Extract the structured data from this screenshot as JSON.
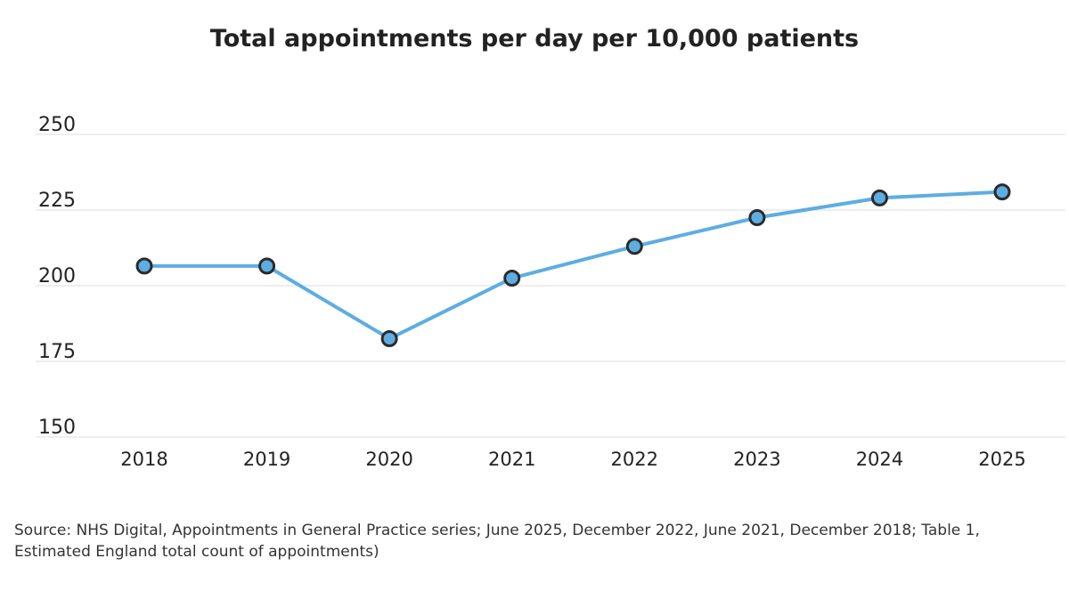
{
  "chart_data": {
    "type": "line",
    "title": "Total appointments per day per 10,000 patients",
    "categories": [
      "2018",
      "2019",
      "2020",
      "2021",
      "2022",
      "2023",
      "2024",
      "2025"
    ],
    "series": [
      {
        "name": "Total appointments per day per 10,000 patients",
        "values": [
          206.5,
          206.5,
          182.5,
          202.5,
          213,
          222.5,
          229,
          231
        ]
      }
    ],
    "y_ticks": [
      "150",
      "175",
      "200",
      "225",
      "250"
    ],
    "ylim": [
      150,
      250
    ],
    "xlabel": "",
    "ylabel": "",
    "grid": true,
    "line_color": "#5dade2",
    "marker_color": "#5dade2",
    "marker_edge_color": "#2b2b2b",
    "grid_color": "#e3e3e3"
  },
  "source": "Source: NHS Digital, Appointments in General Practice series; June 2025, December 2022, June 2021, December 2018; Table 1, Estimated England total count of appointments)"
}
